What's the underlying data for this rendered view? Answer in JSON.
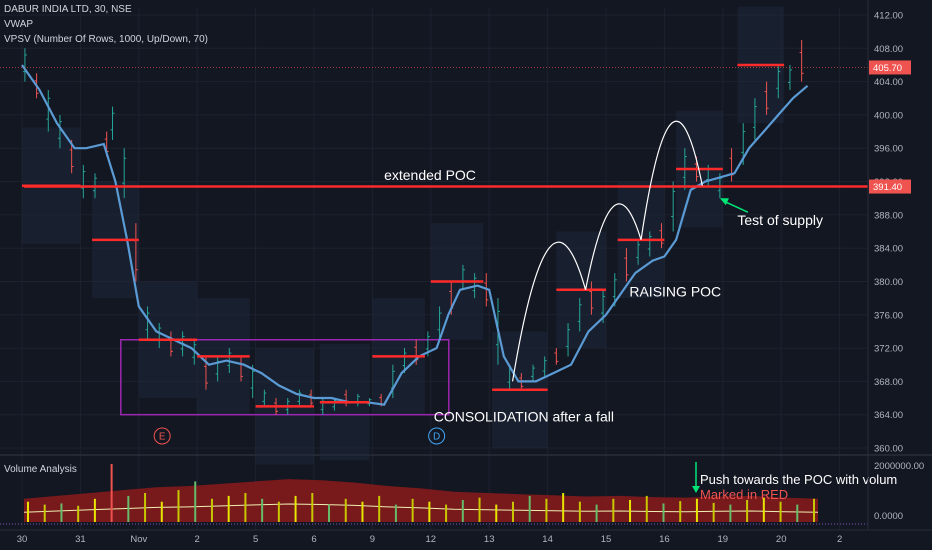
{
  "header": {
    "symbol_line": "DABUR INDIA LTD, 30, NSE",
    "indicator_1": "VWAP",
    "indicator_2": "VPSV (Number Of Rows, 1000, Up/Down, 70)"
  },
  "volume_pane": {
    "title": "Volume Analysis",
    "y_labels": [
      "2000000.00",
      "0.0000"
    ],
    "note_line1": "Push towards the POC with volum",
    "note_line2": "Marked in RED"
  },
  "chart_data": {
    "type": "candlestick",
    "symbol": "DABUR INDIA LTD",
    "interval": "30",
    "exchange": "NSE",
    "y_axis": {
      "ylim": [
        360,
        412
      ],
      "ticks": [
        "412.00",
        "408.00",
        "404.00",
        "400.00",
        "396.00",
        "392.00",
        "388.00",
        "384.00",
        "380.00",
        "376.00",
        "372.00",
        "368.00",
        "364.00",
        "360.00"
      ],
      "tick_values": [
        412,
        408,
        404,
        400,
        396,
        392,
        388,
        384,
        380,
        376,
        372,
        368,
        364,
        360
      ]
    },
    "x_axis": {
      "ticks": [
        "30",
        "31",
        "Nov",
        "2",
        "5",
        "6",
        "9",
        "12",
        "13",
        "14",
        "15",
        "16",
        "19",
        "20",
        "2"
      ],
      "tick_index": [
        0,
        1,
        2,
        3,
        4,
        5,
        6,
        7,
        8,
        9,
        10,
        11,
        12,
        13,
        14
      ]
    },
    "price_labels": [
      {
        "text": "405.70",
        "value": 405.7,
        "color": "#ef5350"
      },
      {
        "text": "391.40",
        "value": 391.4,
        "color": "#ef5350"
      }
    ],
    "vwap": [
      [
        0.0,
        406
      ],
      [
        0.3,
        403
      ],
      [
        0.6,
        399
      ],
      [
        0.9,
        396
      ],
      [
        1.1,
        396
      ],
      [
        1.4,
        396.5
      ],
      [
        1.6,
        392
      ],
      [
        1.8,
        385
      ],
      [
        2.0,
        377
      ],
      [
        2.3,
        374
      ],
      [
        2.6,
        373
      ],
      [
        2.9,
        372
      ],
      [
        3.2,
        370
      ],
      [
        3.5,
        370.5
      ],
      [
        3.8,
        370
      ],
      [
        4.1,
        369
      ],
      [
        4.4,
        367.5
      ],
      [
        4.7,
        366.5
      ],
      [
        5.0,
        366
      ],
      [
        5.3,
        366
      ],
      [
        5.6,
        365.5
      ],
      [
        5.9,
        365.5
      ],
      [
        6.2,
        365.2
      ],
      [
        6.5,
        369
      ],
      [
        6.8,
        371
      ],
      [
        7.1,
        372
      ],
      [
        7.3,
        376
      ],
      [
        7.5,
        379
      ],
      [
        7.8,
        379.5
      ],
      [
        8.0,
        379
      ],
      [
        8.25,
        371
      ],
      [
        8.5,
        368
      ],
      [
        8.8,
        368
      ],
      [
        9.1,
        369
      ],
      [
        9.4,
        370
      ],
      [
        9.7,
        374
      ],
      [
        10.0,
        376
      ],
      [
        10.2,
        378
      ],
      [
        10.5,
        381
      ],
      [
        10.8,
        382.5
      ],
      [
        11.0,
        383
      ],
      [
        11.2,
        385
      ],
      [
        11.45,
        391
      ],
      [
        11.7,
        392
      ],
      [
        11.95,
        392.5
      ],
      [
        12.2,
        393
      ],
      [
        12.45,
        396
      ],
      [
        12.7,
        398
      ],
      [
        12.95,
        400
      ],
      [
        13.2,
        402
      ],
      [
        13.45,
        403.5
      ]
    ],
    "candles": [
      [
        0.05,
        408,
        404
      ],
      [
        0.25,
        405,
        402
      ],
      [
        0.45,
        403,
        398
      ],
      [
        0.65,
        400,
        396
      ],
      [
        0.85,
        397,
        393
      ],
      [
        1.05,
        394,
        390
      ],
      [
        1.25,
        393,
        390
      ],
      [
        1.45,
        398,
        395
      ],
      [
        1.55,
        401,
        397
      ],
      [
        1.75,
        396,
        390
      ],
      [
        1.95,
        387,
        380
      ],
      [
        2.15,
        377,
        373
      ],
      [
        2.35,
        375,
        372
      ],
      [
        2.55,
        374,
        371
      ],
      [
        2.75,
        374,
        371
      ],
      [
        2.95,
        373,
        370
      ],
      [
        3.15,
        371,
        367
      ],
      [
        3.35,
        371,
        368
      ],
      [
        3.55,
        372,
        369
      ],
      [
        3.75,
        371,
        368
      ],
      [
        3.95,
        370,
        366
      ],
      [
        4.15,
        367,
        365
      ],
      [
        4.35,
        366,
        364
      ],
      [
        4.55,
        366,
        364
      ],
      [
        4.75,
        367,
        365
      ],
      [
        4.95,
        367,
        365
      ],
      [
        5.15,
        366,
        364
      ],
      [
        5.35,
        366,
        364.5
      ],
      [
        5.55,
        367,
        365
      ],
      [
        5.75,
        366.5,
        365
      ],
      [
        5.95,
        366,
        365
      ],
      [
        6.15,
        366.5,
        365
      ],
      [
        6.35,
        370,
        366
      ],
      [
        6.55,
        372,
        369
      ],
      [
        6.75,
        373,
        370
      ],
      [
        6.95,
        374,
        371
      ],
      [
        7.15,
        377,
        373
      ],
      [
        7.35,
        380,
        376
      ],
      [
        7.55,
        382,
        379
      ],
      [
        7.75,
        381,
        378
      ],
      [
        7.95,
        381,
        377
      ],
      [
        8.15,
        378,
        370
      ],
      [
        8.35,
        370,
        367
      ],
      [
        8.55,
        369,
        367
      ],
      [
        8.75,
        370,
        368
      ],
      [
        8.95,
        371,
        368.5
      ],
      [
        9.15,
        372,
        370
      ],
      [
        9.35,
        375,
        371
      ],
      [
        9.55,
        378,
        374
      ],
      [
        9.75,
        380,
        376
      ],
      [
        9.95,
        379,
        375
      ],
      [
        10.15,
        381,
        377
      ],
      [
        10.35,
        384,
        380
      ],
      [
        10.55,
        385,
        382
      ],
      [
        10.75,
        386,
        383
      ],
      [
        10.95,
        387,
        384
      ],
      [
        11.15,
        392,
        386
      ],
      [
        11.35,
        396,
        391
      ],
      [
        11.55,
        395,
        392
      ],
      [
        11.75,
        394,
        391.5
      ],
      [
        11.95,
        393,
        390
      ],
      [
        12.15,
        396,
        392
      ],
      [
        12.35,
        399,
        394
      ],
      [
        12.55,
        402,
        397
      ],
      [
        12.75,
        404,
        400
      ],
      [
        12.95,
        406,
        402
      ],
      [
        13.15,
        406,
        403
      ],
      [
        13.35,
        409,
        404
      ]
    ],
    "poc_segments": [
      [
        0.0,
        1.0,
        391.5
      ],
      [
        1.2,
        2.0,
        385
      ],
      [
        2.0,
        3.0,
        373
      ],
      [
        3.0,
        3.9,
        371
      ],
      [
        4.0,
        5.0,
        365
      ],
      [
        5.1,
        5.95,
        365.5
      ],
      [
        6.0,
        6.9,
        371
      ],
      [
        7.0,
        7.9,
        380
      ],
      [
        8.05,
        9.0,
        367
      ],
      [
        9.15,
        10.0,
        379
      ],
      [
        10.2,
        11.0,
        385
      ],
      [
        11.2,
        12.0,
        393.5
      ],
      [
        12.25,
        13.05,
        406
      ]
    ],
    "extended_poc": 391.4,
    "consolidation_box": {
      "x0": 2.0,
      "x1": 7.0,
      "y_low": 364,
      "y_high": 373
    },
    "markers": [
      {
        "label": "E",
        "x": 2.4,
        "color": "#ef5350"
      },
      {
        "label": "D",
        "x": 7.1,
        "color": "#42a5f5"
      }
    ],
    "arcs": [
      [
        8.4,
        368,
        9.65,
        379,
        384
      ],
      [
        9.65,
        379,
        10.6,
        385,
        389
      ],
      [
        10.6,
        385,
        11.65,
        391.5,
        399
      ]
    ],
    "annotations": [
      {
        "text": "extended POC",
        "x": 6.2,
        "y": 392.2
      },
      {
        "text": "RAISING POC",
        "x": 10.4,
        "y": 378.2
      },
      {
        "text": "Test of supply",
        "x": 12.25,
        "y": 386.8
      },
      {
        "text": "CONSOLIDATION after a fall",
        "x": 7.05,
        "y": 363.2
      }
    ],
    "volume_series": [
      0.35,
      0.3,
      0.32,
      0.28,
      0.4,
      1.0,
      0.45,
      0.5,
      0.35,
      0.55,
      0.7,
      0.4,
      0.45,
      0.5,
      0.4,
      0.35,
      0.45,
      0.5,
      0.3,
      0.4,
      0.35,
      0.45,
      0.3,
      0.4,
      0.35,
      0.3,
      0.38,
      0.42,
      0.3,
      0.35,
      0.45,
      0.4,
      0.5,
      0.35,
      0.3,
      0.4,
      0.38,
      0.45,
      0.32,
      0.36,
      0.4,
      0.33,
      0.3,
      0.38,
      0.42,
      0.35,
      0.3,
      0.4
    ],
    "volume_area_top": [
      0.4,
      0.45,
      0.5,
      0.55,
      0.6,
      0.62,
      0.66,
      0.7,
      0.74,
      0.72,
      0.68,
      0.62,
      0.58,
      0.52,
      0.5,
      0.48,
      0.46,
      0.44,
      0.45,
      0.43,
      0.42,
      0.44,
      0.45,
      0.42,
      0.4
    ],
    "grid": true,
    "colors": {
      "background": "#131722",
      "grid": "#1e2230",
      "up": "#26a69a",
      "down": "#ef5350",
      "vwap": "#5b9bd5",
      "poc": "#ff2a2a",
      "box": "#9c27b0",
      "arc": "#ffffff",
      "volume_area": "#8b1a1a",
      "green_arrow": "#00e676"
    }
  }
}
